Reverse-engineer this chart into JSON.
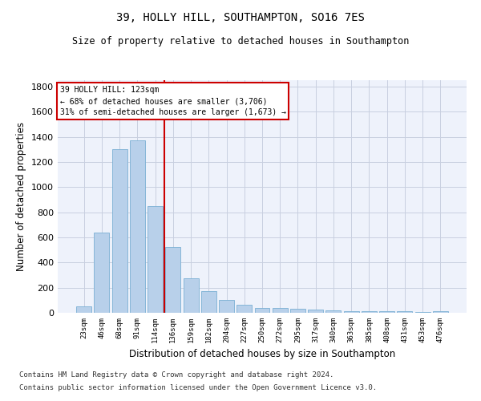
{
  "title1": "39, HOLLY HILL, SOUTHAMPTON, SO16 7ES",
  "title2": "Size of property relative to detached houses in Southampton",
  "xlabel": "Distribution of detached houses by size in Southampton",
  "ylabel": "Number of detached properties",
  "categories": [
    "23sqm",
    "46sqm",
    "68sqm",
    "91sqm",
    "114sqm",
    "136sqm",
    "159sqm",
    "182sqm",
    "204sqm",
    "227sqm",
    "250sqm",
    "272sqm",
    "295sqm",
    "317sqm",
    "340sqm",
    "363sqm",
    "385sqm",
    "408sqm",
    "431sqm",
    "453sqm",
    "476sqm"
  ],
  "values": [
    50,
    640,
    1300,
    1370,
    848,
    520,
    275,
    175,
    105,
    65,
    40,
    38,
    30,
    25,
    20,
    10,
    10,
    10,
    10,
    5,
    15
  ],
  "bar_color": "#b8d0ea",
  "bar_edge_color": "#7aafd4",
  "vline_x": 4.5,
  "vline_color": "#cc0000",
  "annotation_text": "39 HOLLY HILL: 123sqm\n← 68% of detached houses are smaller (3,706)\n31% of semi-detached houses are larger (1,673) →",
  "annotation_box_color": "#cc0000",
  "ylim": [
    0,
    1850
  ],
  "yticks": [
    0,
    200,
    400,
    600,
    800,
    1000,
    1200,
    1400,
    1600,
    1800
  ],
  "footnote1": "Contains HM Land Registry data © Crown copyright and database right 2024.",
  "footnote2": "Contains public sector information licensed under the Open Government Licence v3.0.",
  "background_color": "#eef2fb",
  "grid_color": "#c8cfe0"
}
